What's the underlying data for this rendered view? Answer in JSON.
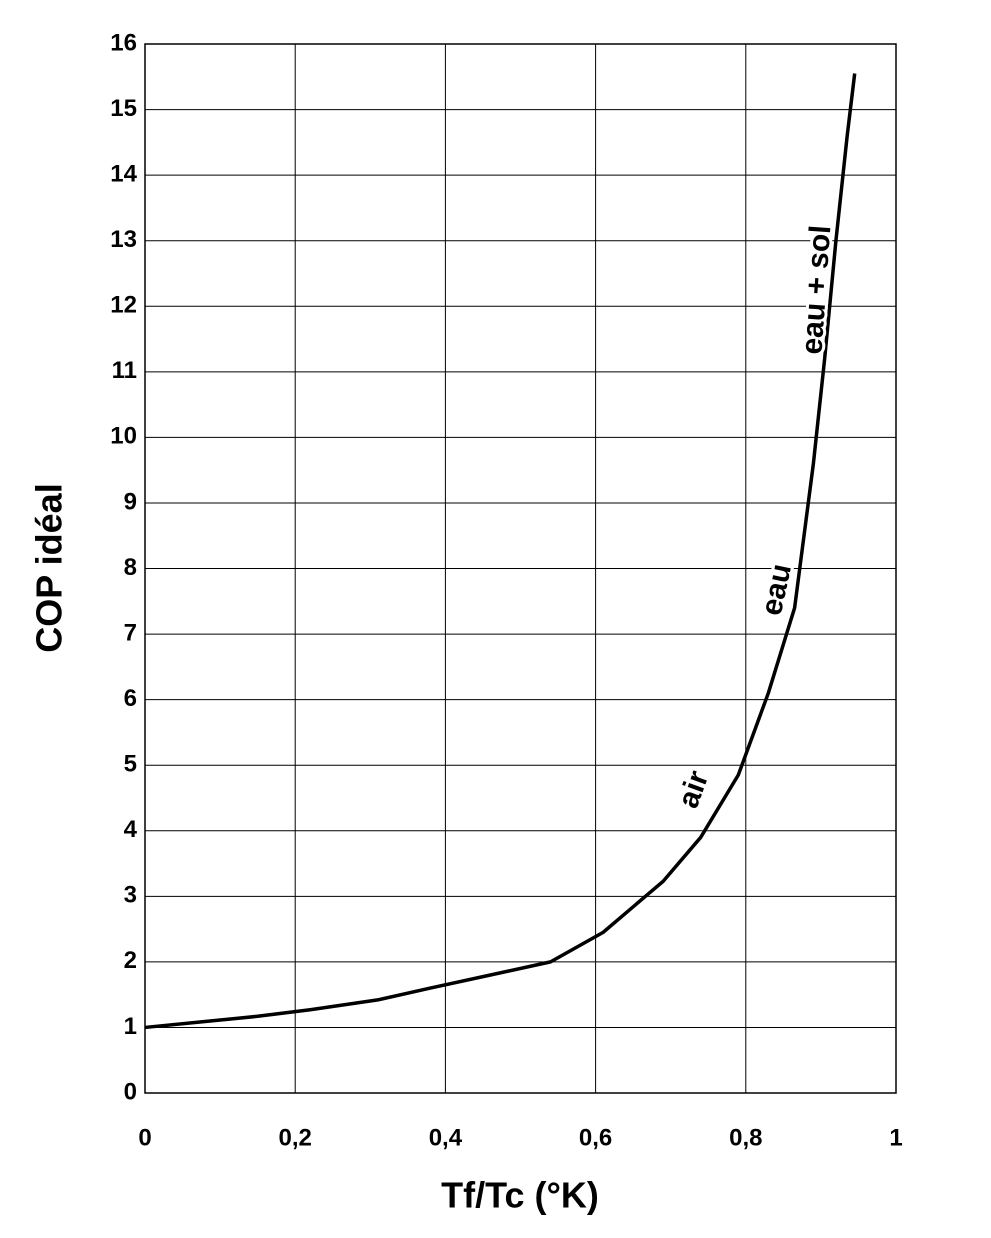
{
  "chart_data": {
    "type": "line",
    "xlabel": "Tf/Tc  (°K)",
    "ylabel": "COP idéal",
    "x": [
      0,
      0.08,
      0.15,
      0.22,
      0.31,
      0.38,
      0.46,
      0.54,
      0.61,
      0.69,
      0.74,
      0.79,
      0.83,
      0.865,
      0.89,
      0.905,
      0.92,
      0.935,
      0.945
    ],
    "series": [
      {
        "color": "#000000",
        "values": [
          1,
          1.09,
          1.17,
          1.27,
          1.42,
          1.6,
          1.8,
          2.0,
          2.45,
          3.23,
          3.9,
          4.85,
          6.1,
          7.4,
          9.6,
          11.2,
          13.0,
          14.6,
          15.55
        ]
      }
    ],
    "xlim": [
      0,
      1
    ],
    "xticks": [
      0,
      {
        "value": 0.2,
        "label": "0,2"
      },
      {
        "value": 0.4,
        "label": "0,4"
      },
      {
        "value": 0.6,
        "label": "0,6"
      },
      {
        "value": 0.8,
        "label": "0,8"
      },
      1
    ],
    "ylim": [
      0,
      16
    ],
    "yticks": [
      0,
      1,
      2,
      3,
      4,
      5,
      6,
      7,
      8,
      9,
      10,
      11,
      12,
      13,
      14,
      15,
      16
    ],
    "grid": true,
    "annotations": [
      "air",
      "eau",
      "eau + sol"
    ]
  }
}
